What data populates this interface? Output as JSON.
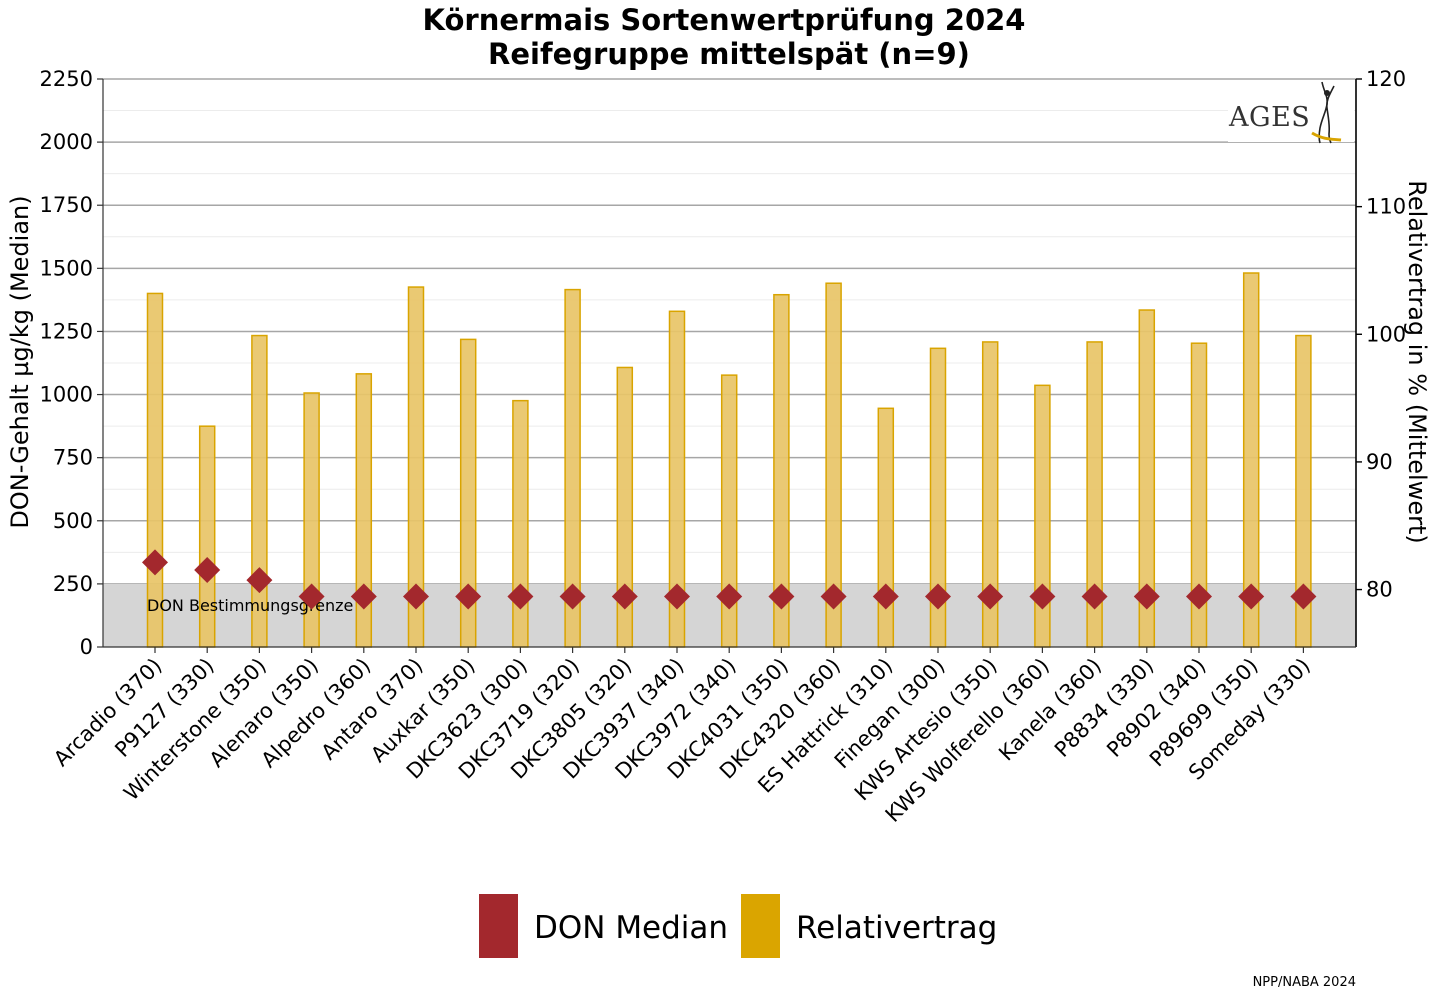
{
  "chart_data": {
    "type": "bar",
    "title_line1": "Körnermais Sortenwertprüfung 2024",
    "title_line2": "Reifegruppe mittelspät (n=9)",
    "ylabel_left": "DON-Gehalt µg/kg (Median)",
    "ylabel_right": "Relativertrag in % (Mittelwert)",
    "ylim_left": [
      0,
      2250
    ],
    "yticks_left": [
      "0",
      "250",
      "500",
      "750",
      "1000",
      "1250",
      "1500",
      "1750",
      "2000",
      "2250"
    ],
    "ylim_right": [
      75.5,
      120
    ],
    "yticks_right": [
      "80",
      "90",
      "100",
      "110",
      "120"
    ],
    "categories": [
      "Arcadio (370)",
      "P9127 (330)",
      "Winterstone (350)",
      "Alenaro (350)",
      "Alpedro (360)",
      "Antaro (370)",
      "Auxkar (350)",
      "DKC3623 (300)",
      "DKC3719 (320)",
      "DKC3805 (320)",
      "DKC3937 (340)",
      "DKC3972 (340)",
      "DKC4031 (350)",
      "DKC4320 (360)",
      "ES Hattrick (310)",
      "Finegan (300)",
      "KWS Artesio (350)",
      "KWS Wolferello (360)",
      "Kanela (360)",
      "P8834 (330)",
      "P8902 (340)",
      "P89699 (350)",
      "Someday (330)"
    ],
    "series": [
      {
        "name": "Relativertrag",
        "axis": "right",
        "kind": "bar",
        "color": "#E8C467",
        "edge_color": "#D9A400",
        "values": [
          103.2,
          92.8,
          99.9,
          95.4,
          96.9,
          103.7,
          99.6,
          94.8,
          103.5,
          97.4,
          101.8,
          96.8,
          103.1,
          104.0,
          94.2,
          98.9,
          99.4,
          96.0,
          99.4,
          101.9,
          99.3,
          104.8,
          99.9
        ]
      },
      {
        "name": "DON Median",
        "axis": "left",
        "kind": "diamond",
        "color": "#A3282D",
        "values": [
          335,
          305,
          265,
          200,
          200,
          200,
          200,
          200,
          200,
          200,
          200,
          200,
          200,
          200,
          200,
          200,
          200,
          200,
          200,
          200,
          200,
          200,
          200
        ]
      }
    ],
    "band": {
      "from": 0,
      "to": 250,
      "label": "DON Bestimmungsgrenze",
      "color": "#D5D5D5"
    },
    "grid": true,
    "legend": {
      "position": "bottom-center",
      "items": [
        {
          "label": "DON Median",
          "color": "#A3282D"
        },
        {
          "label": "Relativertrag",
          "color": "#DAA500"
        }
      ]
    },
    "logo_text": "AGES",
    "source_note": "NPP/NABA 2024"
  }
}
